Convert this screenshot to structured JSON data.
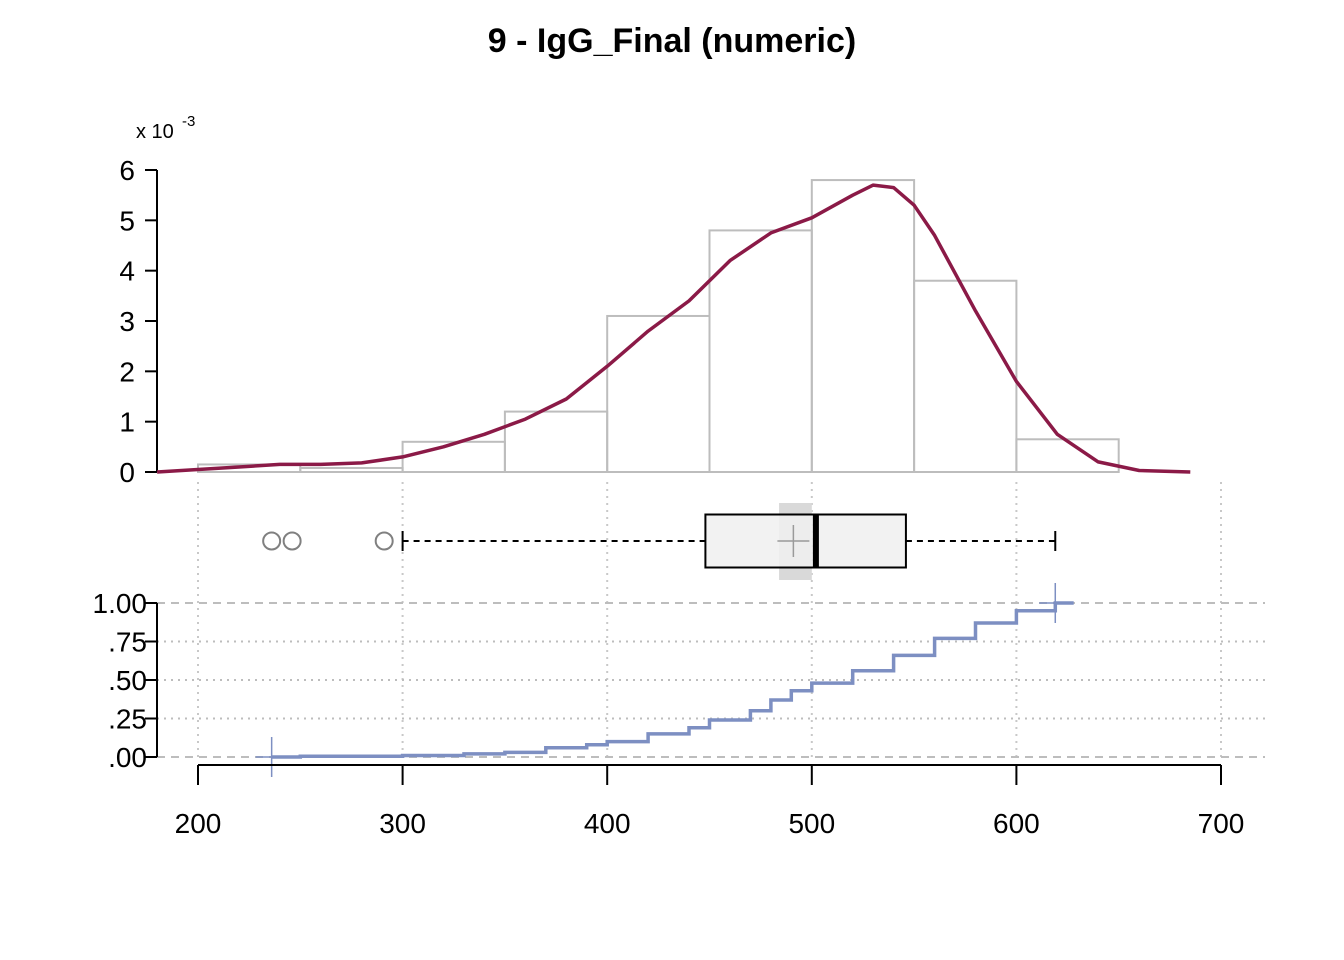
{
  "title": "9 - IgG_Final (numeric)",
  "chart_data": [
    {
      "type": "histogram",
      "y_scale_prefix": "x 10",
      "y_scale_exponent": "-3",
      "yticks": [
        "0",
        "1",
        "2",
        "3",
        "4",
        "5",
        "6"
      ],
      "ylim": [
        0,
        6
      ],
      "xlim": [
        180,
        700
      ],
      "bins": [
        {
          "x0": 200,
          "x1": 250,
          "density": 0.15
        },
        {
          "x0": 250,
          "x1": 300,
          "density": 0.08
        },
        {
          "x0": 300,
          "x1": 350,
          "density": 0.6
        },
        {
          "x0": 350,
          "x1": 400,
          "density": 1.2
        },
        {
          "x0": 400,
          "x1": 450,
          "density": 3.1
        },
        {
          "x0": 450,
          "x1": 500,
          "density": 4.8
        },
        {
          "x0": 500,
          "x1": 550,
          "density": 5.8
        },
        {
          "x0": 550,
          "x1": 600,
          "density": 3.8
        },
        {
          "x0": 600,
          "x1": 650,
          "density": 0.65
        }
      ],
      "density_curve": [
        [
          180,
          0.0
        ],
        [
          200,
          0.05
        ],
        [
          220,
          0.1
        ],
        [
          240,
          0.15
        ],
        [
          260,
          0.15
        ],
        [
          280,
          0.18
        ],
        [
          300,
          0.3
        ],
        [
          320,
          0.5
        ],
        [
          340,
          0.75
        ],
        [
          360,
          1.05
        ],
        [
          380,
          1.45
        ],
        [
          400,
          2.1
        ],
        [
          420,
          2.8
        ],
        [
          440,
          3.4
        ],
        [
          460,
          4.2
        ],
        [
          480,
          4.75
        ],
        [
          500,
          5.05
        ],
        [
          520,
          5.5
        ],
        [
          530,
          5.7
        ],
        [
          540,
          5.65
        ],
        [
          550,
          5.3
        ],
        [
          560,
          4.7
        ],
        [
          580,
          3.2
        ],
        [
          600,
          1.8
        ],
        [
          620,
          0.75
        ],
        [
          640,
          0.2
        ],
        [
          660,
          0.03
        ],
        [
          685,
          0.0
        ]
      ],
      "colors": {
        "bins": "#bdbdbd",
        "curve": "#8b1a47"
      }
    },
    {
      "type": "boxplot",
      "min": 300,
      "q1": 448,
      "median": 502,
      "q3": 546,
      "max": 619,
      "mean": 491,
      "ci": [
        484,
        500
      ],
      "outliers": [
        236,
        246,
        291
      ],
      "colors": {
        "box": "#f0f0f0",
        "ci": "#d9d9d9",
        "outlier": "#808080"
      }
    },
    {
      "type": "ecdf",
      "yticks": [
        "1.00",
        ".75",
        ".50",
        ".25",
        ".00"
      ],
      "ylim": [
        0,
        1
      ],
      "xticks": [
        "200",
        "300",
        "400",
        "500",
        "600",
        "700"
      ],
      "xlim": [
        180,
        700
      ],
      "points": [
        [
          236,
          0.0
        ],
        [
          250,
          0.005
        ],
        [
          300,
          0.01
        ],
        [
          330,
          0.02
        ],
        [
          350,
          0.03
        ],
        [
          370,
          0.06
        ],
        [
          390,
          0.08
        ],
        [
          400,
          0.1
        ],
        [
          420,
          0.15
        ],
        [
          440,
          0.19
        ],
        [
          450,
          0.24
        ],
        [
          470,
          0.3
        ],
        [
          480,
          0.37
        ],
        [
          490,
          0.43
        ],
        [
          500,
          0.48
        ],
        [
          520,
          0.56
        ],
        [
          540,
          0.66
        ],
        [
          560,
          0.77
        ],
        [
          580,
          0.87
        ],
        [
          600,
          0.95
        ],
        [
          619,
          1.0
        ],
        [
          628,
          1.0
        ]
      ],
      "min_marker": 236,
      "max_marker": 619,
      "colors": {
        "line": "#7d8fc2"
      }
    }
  ]
}
